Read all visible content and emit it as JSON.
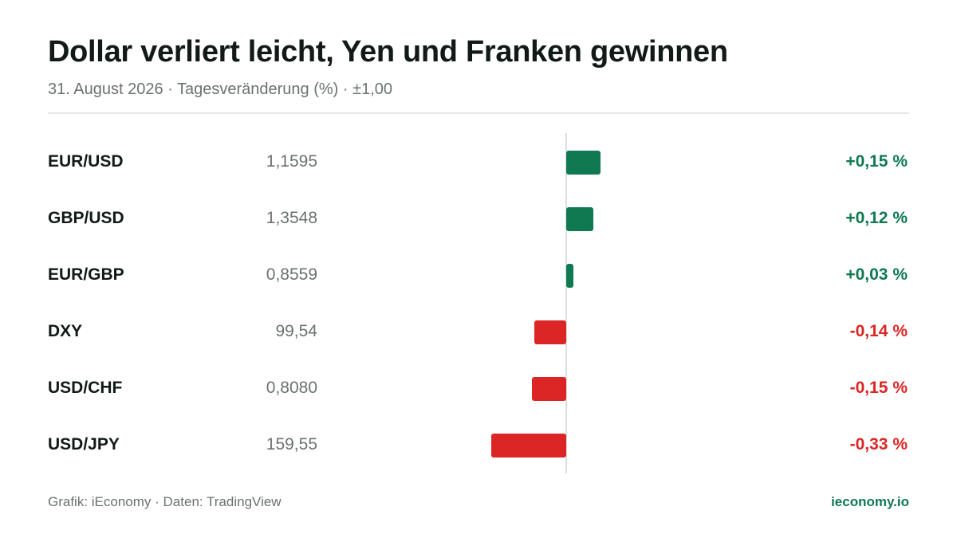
{
  "header": {
    "title": "Dollar verliert leicht, Yen und Franken gewinnen",
    "subtitle": "31. August 2026 · Tagesveränderung (%) · ±1,00"
  },
  "footer": {
    "source": "Grafik: iEconomy · Daten: TradingView",
    "brand": "ieconomy.io"
  },
  "colors": {
    "positive": "#0f7a52",
    "negative": "#dc2626"
  },
  "chart_data": {
    "type": "bar",
    "orientation": "horizontal",
    "categories": [
      "EUR/USD",
      "GBP/USD",
      "EUR/GBP",
      "DXY",
      "USD/CHF",
      "USD/JPY"
    ],
    "rates": [
      "1,1595",
      "1,3548",
      "0,8559",
      "99,54",
      "0,8080",
      "159,55"
    ],
    "values": [
      0.15,
      0.12,
      0.03,
      -0.14,
      -0.15,
      -0.33
    ],
    "labels": [
      "+0,15 %",
      "+0,12 %",
      "+0,03 %",
      "-0,14 %",
      "-0,15 %",
      "-0,33 %"
    ],
    "xlim": [
      -1.0,
      1.0
    ],
    "grid": false
  }
}
